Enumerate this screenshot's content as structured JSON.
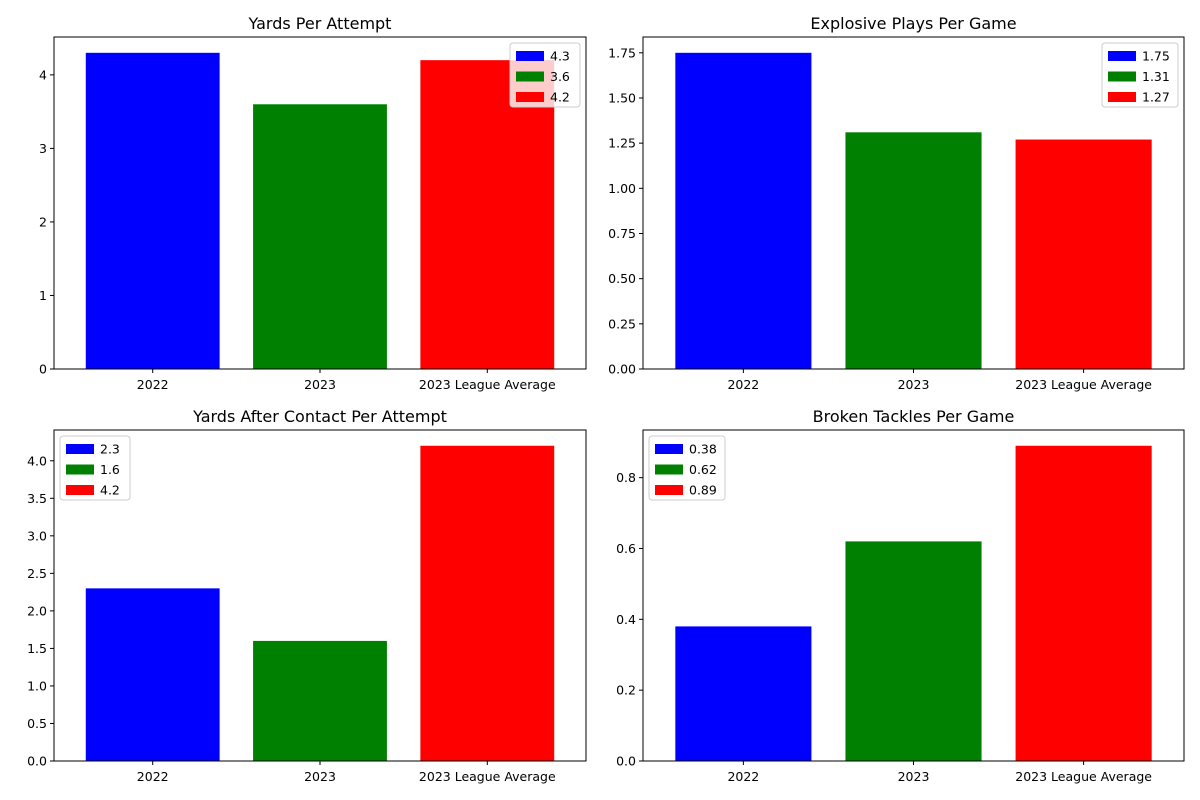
{
  "chart_data": [
    {
      "type": "bar",
      "title": "Yards Per Attempt",
      "categories": [
        "2022",
        "2023",
        "2023 League Average"
      ],
      "values": [
        4.3,
        3.6,
        4.2
      ],
      "colors": [
        "#0000ff",
        "#008000",
        "#ff0000"
      ],
      "ylim": [
        0,
        4.515
      ],
      "yticks": [
        0,
        1,
        2,
        3,
        4
      ],
      "ytick_labels": [
        "0",
        "1",
        "2",
        "3",
        "4"
      ],
      "legend": {
        "position": "upper right",
        "entries": [
          "4.3",
          "3.6",
          "4.2"
        ]
      }
    },
    {
      "type": "bar",
      "title": "Explosive Plays Per Game",
      "categories": [
        "2022",
        "2023",
        "2023 League Average"
      ],
      "values": [
        1.75,
        1.31,
        1.27
      ],
      "colors": [
        "#0000ff",
        "#008000",
        "#ff0000"
      ],
      "ylim": [
        0,
        1.8375
      ],
      "yticks": [
        0,
        0.25,
        0.5,
        0.75,
        1.0,
        1.25,
        1.5,
        1.75
      ],
      "ytick_labels": [
        "0.00",
        "0.25",
        "0.50",
        "0.75",
        "1.00",
        "1.25",
        "1.50",
        "1.75"
      ],
      "legend": {
        "position": "upper right",
        "entries": [
          "1.75",
          "1.31",
          "1.27"
        ]
      }
    },
    {
      "type": "bar",
      "title": "Yards After Contact Per Attempt",
      "categories": [
        "2022",
        "2023",
        "2023 League Average"
      ],
      "values": [
        2.3,
        1.6,
        4.2
      ],
      "colors": [
        "#0000ff",
        "#008000",
        "#ff0000"
      ],
      "ylim": [
        0,
        4.41
      ],
      "yticks": [
        0,
        0.5,
        1.0,
        1.5,
        2.0,
        2.5,
        3.0,
        3.5,
        4.0
      ],
      "ytick_labels": [
        "0.0",
        "0.5",
        "1.0",
        "1.5",
        "2.0",
        "2.5",
        "3.0",
        "3.5",
        "4.0"
      ],
      "legend": {
        "position": "upper left",
        "entries": [
          "2.3",
          "1.6",
          "4.2"
        ]
      }
    },
    {
      "type": "bar",
      "title": "Broken Tackles Per Game",
      "categories": [
        "2022",
        "2023",
        "2023 League Average"
      ],
      "values": [
        0.38,
        0.62,
        0.89
      ],
      "colors": [
        "#0000ff",
        "#008000",
        "#ff0000"
      ],
      "ylim": [
        0,
        0.9345
      ],
      "yticks": [
        0,
        0.2,
        0.4,
        0.6,
        0.8
      ],
      "ytick_labels": [
        "0.0",
        "0.2",
        "0.4",
        "0.6",
        "0.8"
      ],
      "legend": {
        "position": "upper left",
        "entries": [
          "0.38",
          "0.62",
          "0.89"
        ]
      }
    }
  ]
}
